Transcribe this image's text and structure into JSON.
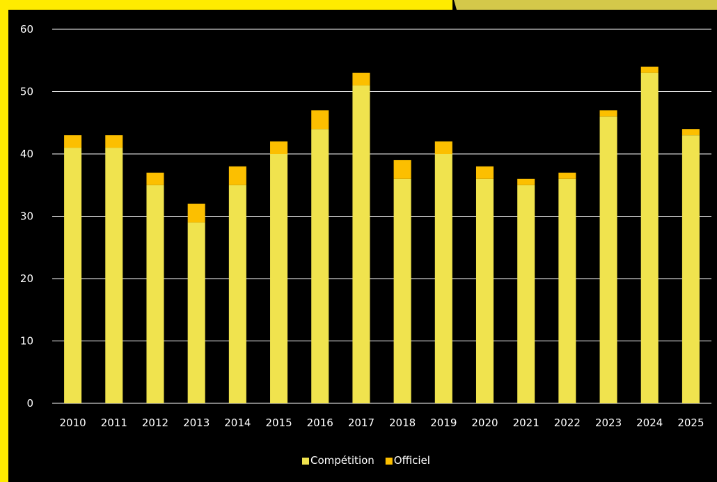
{
  "chart_data": {
    "type": "bar",
    "stacked": true,
    "categories": [
      "2010",
      "2011",
      "2012",
      "2013",
      "2014",
      "2015",
      "2016",
      "2017",
      "2018",
      "2019",
      "2020",
      "2021",
      "2022",
      "2023",
      "2024",
      "2025"
    ],
    "series": [
      {
        "name": "Compétition",
        "color": "#f0e34e",
        "values": [
          41,
          41,
          35,
          29,
          35,
          40,
          44,
          51,
          36,
          40,
          36,
          35,
          36,
          46,
          53,
          43
        ]
      },
      {
        "name": "Officiel",
        "color": "#fcbf00",
        "values": [
          2,
          2,
          2,
          3,
          3,
          2,
          3,
          2,
          3,
          2,
          2,
          1,
          1,
          1,
          1,
          1
        ]
      }
    ],
    "y_ticks": [
      0,
      10,
      20,
      30,
      40,
      50,
      60
    ],
    "ylim": [
      0,
      60
    ],
    "grid": true,
    "legend_position": "bottom",
    "title": "",
    "xlabel": "",
    "ylabel": ""
  },
  "colors": {
    "background": "#000000",
    "frame_accent": "#ffeb00",
    "gridline": "#ffffff",
    "text": "#ffffff"
  }
}
